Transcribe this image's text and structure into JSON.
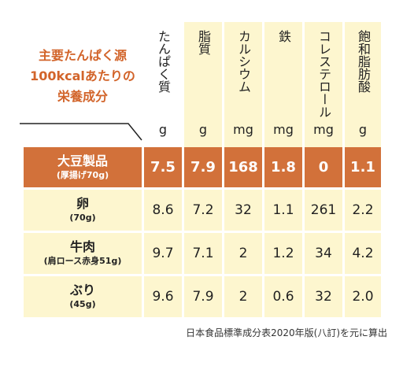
{
  "title_lines": [
    "主要たんぱく源",
    "100kcalあたりの",
    "栄養成分"
  ],
  "columns": [
    {
      "label": "たんぱく質",
      "unit": "g"
    },
    {
      "label": "脂質",
      "unit": "g"
    },
    {
      "label": "カルシウム",
      "unit": "mg"
    },
    {
      "label": "鉄",
      "unit": "mg"
    },
    {
      "label": "コレステロール",
      "unit": "mg"
    },
    {
      "label": "飽和脂肪酸",
      "unit": "g"
    }
  ],
  "rows": [
    {
      "name": "大豆製品",
      "sub": "(厚揚げ70g)",
      "values": [
        "7.5",
        "7.9",
        "168",
        "1.8",
        "0",
        "1.1"
      ],
      "highlight": true
    },
    {
      "name": "卵",
      "sub": "(70g)",
      "values": [
        "8.6",
        "7.2",
        "32",
        "1.1",
        "261",
        "2.2"
      ],
      "highlight": false
    },
    {
      "name": "牛肉",
      "sub": "(肩ロース赤身51g)",
      "values": [
        "9.7",
        "7.1",
        "2",
        "1.2",
        "34",
        "4.2"
      ],
      "highlight": false
    },
    {
      "name": "ぶり",
      "sub": "(45g)",
      "values": [
        "9.6",
        "7.9",
        "2",
        "0.6",
        "32",
        "2.0"
      ],
      "highlight": false
    }
  ],
  "source": "日本食品標準成分表2020年版(八訂)を元に算出",
  "colors": {
    "accent": "#d2713a",
    "title": "#d2642a",
    "pale": "#fdf6cf"
  }
}
